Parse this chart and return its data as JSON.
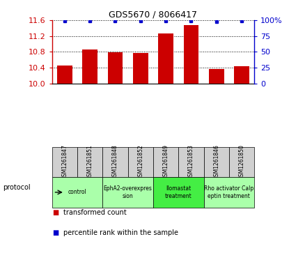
{
  "title": "GDS5670 / 8066417",
  "samples": [
    "GSM1261847",
    "GSM1261851",
    "GSM1261848",
    "GSM1261852",
    "GSM1261849",
    "GSM1261853",
    "GSM1261846",
    "GSM1261850"
  ],
  "transformed_counts": [
    10.46,
    10.86,
    10.79,
    10.77,
    11.27,
    11.48,
    10.37,
    10.43
  ],
  "percentile_ranks": [
    99,
    99,
    99,
    99,
    99,
    99,
    98,
    99
  ],
  "ylim": [
    10.0,
    11.6
  ],
  "yticks": [
    10.0,
    10.4,
    10.8,
    11.2,
    11.6
  ],
  "y2lim": [
    0,
    100
  ],
  "y2ticks": [
    0,
    25,
    50,
    75,
    100
  ],
  "bar_color": "#cc0000",
  "dot_color": "#0000cc",
  "sample_box_color": "#d0d0d0",
  "protocols": [
    {
      "label": "control",
      "start": 0,
      "end": 2,
      "color": "#aaffaa"
    },
    {
      "label": "EphA2-overexpres\nsion",
      "start": 2,
      "end": 4,
      "color": "#aaffaa"
    },
    {
      "label": "Ilomastat\ntreatment",
      "start": 4,
      "end": 6,
      "color": "#44ee44"
    },
    {
      "label": "Rho activator Calp\neptin treatment",
      "start": 6,
      "end": 8,
      "color": "#aaffaa"
    }
  ],
  "legend_bar_label": "transformed count",
  "legend_dot_label": "percentile rank within the sample",
  "protocol_label": "protocol"
}
